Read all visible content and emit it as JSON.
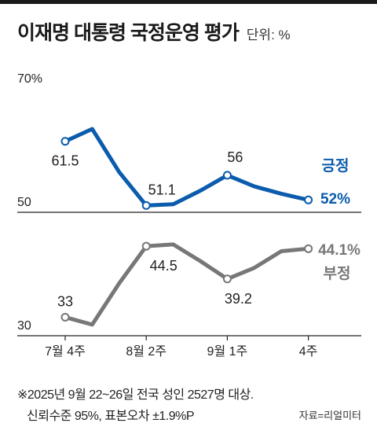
{
  "header": {
    "title": "이재명 대통령 국정운영 평가",
    "unit": "단위: %"
  },
  "chart_data": {
    "type": "line",
    "title": "이재명 대통령 국정운영 평가",
    "unit": "%",
    "ylim": [
      30,
      70
    ],
    "yticks": [
      {
        "label": "70%",
        "value": 70
      },
      {
        "label": "50",
        "value": 50
      },
      {
        "label": "30",
        "value": 30
      }
    ],
    "x": [
      0,
      1,
      2,
      3,
      4,
      5,
      6,
      7,
      8,
      9
    ],
    "xticks": [
      {
        "label": "7월 4주",
        "index": 0
      },
      {
        "label": "8월 2주",
        "index": 3
      },
      {
        "label": "9월 1주",
        "index": 6
      },
      {
        "label": "4주",
        "index": 9
      }
    ],
    "series": [
      {
        "name": "긍정",
        "color": "#0b5cad",
        "values": [
          61.5,
          63.5,
          56.5,
          51.1,
          51.3,
          53.5,
          56,
          54.2,
          53,
          52
        ],
        "labels": [
          {
            "index": 0,
            "text": "61.5"
          },
          {
            "index": 3,
            "text": "51.1"
          },
          {
            "index": 6,
            "text": "56"
          }
        ],
        "end_value": "52%"
      },
      {
        "name": "부정",
        "color": "#777777",
        "values": [
          33,
          31.8,
          38.5,
          44.5,
          44.8,
          42.1,
          39.2,
          41,
          43.7,
          44.1
        ],
        "labels": [
          {
            "index": 0,
            "text": "33"
          },
          {
            "index": 3,
            "text": "44.5"
          },
          {
            "index": 6,
            "text": "39.2"
          }
        ],
        "end_value": "44.1%"
      }
    ]
  },
  "footnote": {
    "line1": "※2025년 9월 22~26일 전국 성인 2527명 대상.",
    "line2": "신뢰수준 95%, 표본오차 ±1.9%P",
    "source": "자료=리얼미터"
  }
}
